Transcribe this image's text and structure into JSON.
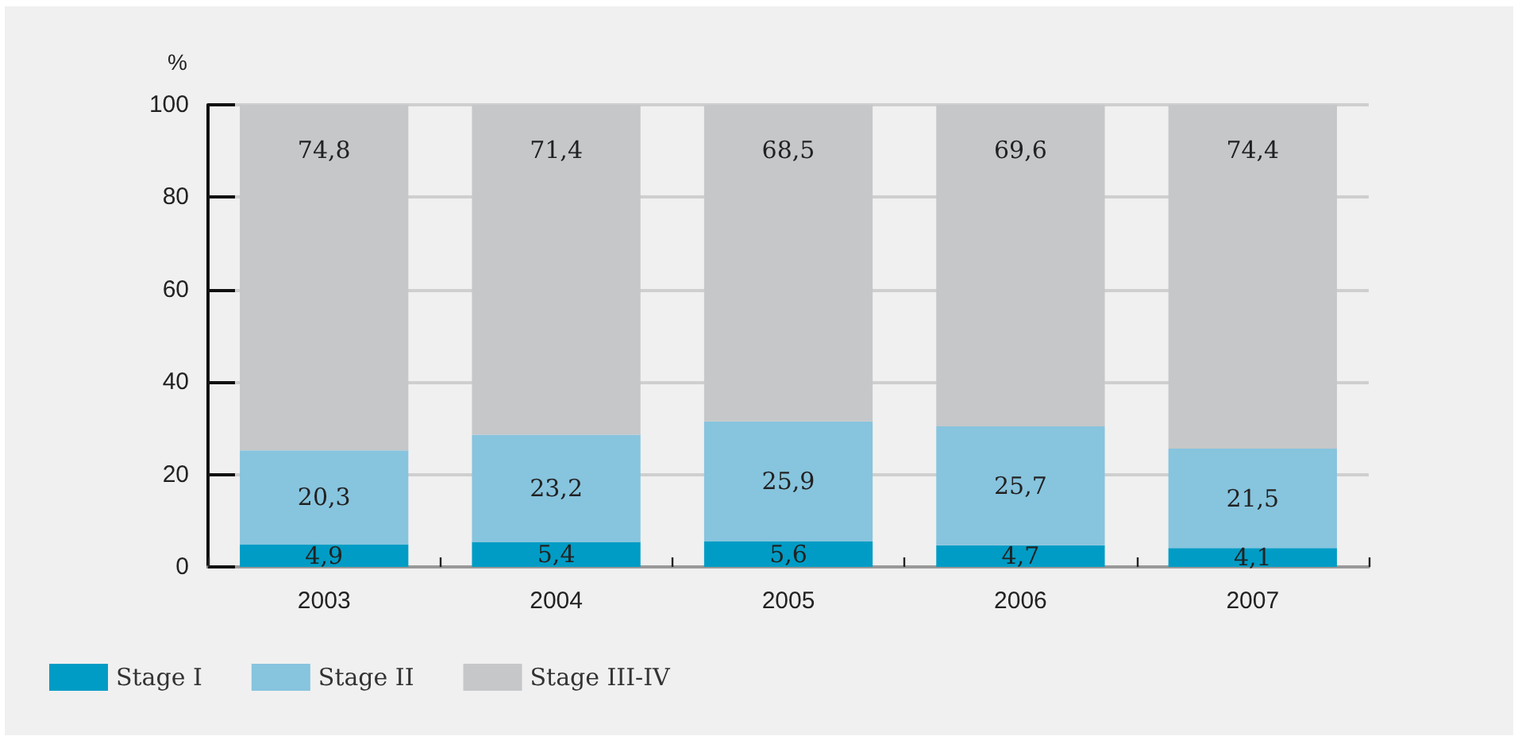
{
  "chart_data": {
    "type": "bar",
    "ylabel": "%",
    "categories": [
      "2003",
      "2004",
      "2005",
      "2006",
      "2007"
    ],
    "stacked": true,
    "series": [
      {
        "name": "Stage I",
        "color": "#009cc5",
        "values": [
          4.9,
          5.4,
          5.6,
          4.7,
          4.1
        ],
        "value_labels": [
          "4,9",
          "5,4",
          "5,6",
          "4,7",
          "4,1"
        ]
      },
      {
        "name": "Stage II",
        "color": "#87c4de",
        "values": [
          20.3,
          23.2,
          25.9,
          25.7,
          21.5
        ],
        "value_labels": [
          "20,3",
          "23,2",
          "25,9",
          "25,7",
          "21,5"
        ]
      },
      {
        "name": "Stage III-IV",
        "color": "#c6c7c9",
        "values": [
          74.8,
          71.4,
          68.5,
          69.6,
          74.4
        ],
        "value_labels": [
          "74,8",
          "71,4",
          "68,5",
          "69,6",
          "74,4"
        ]
      }
    ],
    "ylim": [
      0,
      100
    ],
    "yticks": [
      0,
      20,
      40,
      60,
      80,
      100
    ],
    "grid": "y",
    "legend": "bottom left"
  }
}
